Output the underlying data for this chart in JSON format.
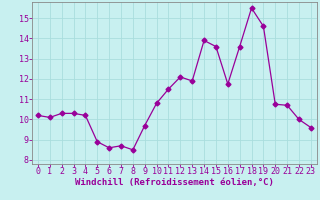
{
  "hours": [
    0,
    1,
    2,
    3,
    4,
    5,
    6,
    7,
    8,
    9,
    10,
    11,
    12,
    13,
    14,
    15,
    16,
    17,
    18,
    19,
    20,
    21,
    22,
    23
  ],
  "values": [
    10.2,
    10.1,
    10.3,
    10.3,
    10.2,
    8.9,
    8.6,
    8.7,
    8.5,
    9.7,
    10.8,
    11.5,
    12.1,
    11.9,
    13.9,
    13.6,
    11.75,
    13.6,
    15.5,
    14.6,
    10.75,
    10.7,
    10.0,
    9.6
  ],
  "line_color": "#990099",
  "marker": "D",
  "marker_size": 2.5,
  "bg_color": "#c8f0f0",
  "grid_color": "#aadddd",
  "xlabel": "Windchill (Refroidissement éolien,°C)",
  "ylim": [
    7.8,
    15.8
  ],
  "xlim": [
    -0.5,
    23.5
  ],
  "yticks": [
    8,
    9,
    10,
    11,
    12,
    13,
    14,
    15
  ],
  "xticks": [
    0,
    1,
    2,
    3,
    4,
    5,
    6,
    7,
    8,
    9,
    10,
    11,
    12,
    13,
    14,
    15,
    16,
    17,
    18,
    19,
    20,
    21,
    22,
    23
  ],
  "tick_color": "#990099",
  "label_fontsize": 6.5,
  "tick_fontsize": 6.0,
  "spine_color": "#888888"
}
